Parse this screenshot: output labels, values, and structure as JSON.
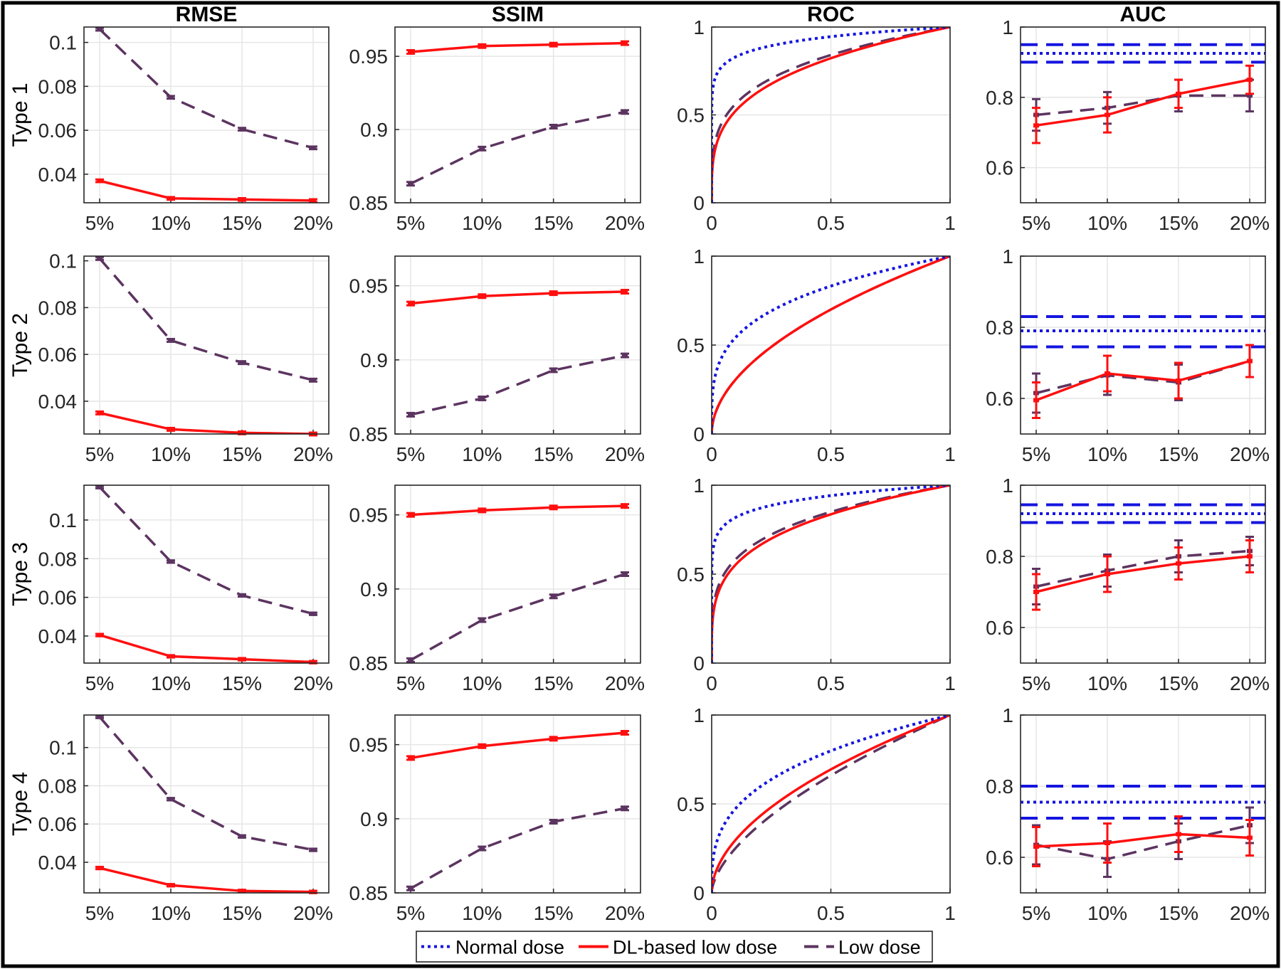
{
  "columns": [
    "RMSE",
    "SSIM",
    "ROC",
    "AUC"
  ],
  "rows": [
    "Type 1",
    "Type 2",
    "Type 3",
    "Type 4"
  ],
  "colors": {
    "normal": "#1515e0",
    "dl": "#ff0f0f",
    "low": "#5c3460",
    "grid": "#e6e6e6",
    "axis": "#262626",
    "frame": "#000000"
  },
  "legend": {
    "items": [
      {
        "key": "normal",
        "label": "Normal dose"
      },
      {
        "key": "dl",
        "label": "DL-based low dose"
      },
      {
        "key": "low",
        "label": "Low dose"
      }
    ]
  },
  "chart_data": [
    {
      "type": "line",
      "title": "RMSE",
      "row": "Type 1",
      "categories": [
        "5%",
        "10%",
        "15%",
        "20%"
      ],
      "ylim": [
        0.027,
        0.107
      ],
      "yticks": [
        0.04,
        0.06,
        0.08,
        0.1
      ],
      "ytick_labels": [
        "0.04",
        "0.06",
        "0.08",
        "0.1"
      ],
      "grid": true,
      "series": [
        {
          "name": "DL-based low dose",
          "values": [
            0.037,
            0.029,
            0.0285,
            0.028
          ]
        },
        {
          "name": "Low dose",
          "values": [
            0.106,
            0.075,
            0.0605,
            0.052
          ]
        }
      ]
    },
    {
      "type": "line",
      "title": "SSIM",
      "row": "Type 1",
      "categories": [
        "5%",
        "10%",
        "15%",
        "20%"
      ],
      "ylim": [
        0.85,
        0.97
      ],
      "yticks": [
        0.85,
        0.9,
        0.95
      ],
      "ytick_labels": [
        "0.85",
        "0.9",
        "0.95"
      ],
      "grid": true,
      "series": [
        {
          "name": "DL-based low dose",
          "values": [
            0.953,
            0.957,
            0.958,
            0.959
          ]
        },
        {
          "name": "Low dose",
          "values": [
            0.863,
            0.887,
            0.902,
            0.912
          ]
        }
      ]
    },
    {
      "type": "line",
      "title": "ROC",
      "row": "Type 1",
      "xlim": [
        0,
        1
      ],
      "ylim": [
        0,
        1
      ],
      "xticks": [
        0,
        0.5,
        1
      ],
      "xtick_labels": [
        "0",
        "0.5",
        "1"
      ],
      "yticks": [
        0,
        0.5,
        1
      ],
      "ytick_labels": [
        "0",
        "0.5",
        "1"
      ],
      "grid": true,
      "series": [
        {
          "name": "Normal dose",
          "auc": 0.925
        },
        {
          "name": "DL-based low dose",
          "auc": 0.78
        },
        {
          "name": "Low dose",
          "auc": 0.8
        }
      ]
    },
    {
      "type": "line",
      "title": "AUC",
      "row": "Type 1",
      "categories": [
        "5%",
        "10%",
        "15%",
        "20%"
      ],
      "ylim": [
        0.5,
        1
      ],
      "yticks": [
        0.6,
        0.8,
        1
      ],
      "ytick_labels": [
        "0.6",
        "0.8",
        "1"
      ],
      "grid": true,
      "normal_dose": {
        "mean": 0.925,
        "ci": [
          0.9,
          0.95
        ]
      },
      "series": [
        {
          "name": "DL-based low dose",
          "values": [
            0.72,
            0.75,
            0.81,
            0.85
          ],
          "err": [
            0.05,
            0.05,
            0.04,
            0.04
          ]
        },
        {
          "name": "Low dose",
          "values": [
            0.75,
            0.77,
            0.805,
            0.805
          ],
          "err": [
            0.045,
            0.045,
            0.045,
            0.045
          ]
        }
      ]
    },
    {
      "type": "line",
      "title": "RMSE",
      "row": "Type 2",
      "categories": [
        "5%",
        "10%",
        "15%",
        "20%"
      ],
      "ylim": [
        0.026,
        0.102
      ],
      "yticks": [
        0.04,
        0.06,
        0.08,
        0.1
      ],
      "ytick_labels": [
        "0.04",
        "0.06",
        "0.08",
        "0.1"
      ],
      "grid": true,
      "series": [
        {
          "name": "DL-based low dose",
          "values": [
            0.035,
            0.028,
            0.0265,
            0.026
          ]
        },
        {
          "name": "Low dose",
          "values": [
            0.101,
            0.066,
            0.0565,
            0.049
          ]
        }
      ]
    },
    {
      "type": "line",
      "title": "SSIM",
      "row": "Type 2",
      "categories": [
        "5%",
        "10%",
        "15%",
        "20%"
      ],
      "ylim": [
        0.85,
        0.97
      ],
      "yticks": [
        0.85,
        0.9,
        0.95
      ],
      "ytick_labels": [
        "0.85",
        "0.9",
        "0.95"
      ],
      "grid": true,
      "series": [
        {
          "name": "DL-based low dose",
          "values": [
            0.938,
            0.943,
            0.945,
            0.946
          ]
        },
        {
          "name": "Low dose",
          "values": [
            0.863,
            0.874,
            0.893,
            0.903
          ]
        }
      ]
    },
    {
      "type": "line",
      "title": "ROC",
      "row": "Type 2",
      "xlim": [
        0,
        1
      ],
      "ylim": [
        0,
        1
      ],
      "xticks": [
        0,
        0.5,
        1
      ],
      "xtick_labels": [
        "0",
        "0.5",
        "1"
      ],
      "yticks": [
        0,
        0.5,
        1
      ],
      "ytick_labels": [
        "0",
        "0.5",
        "1"
      ],
      "grid": true,
      "series": [
        {
          "name": "Normal dose",
          "auc": 0.79
        },
        {
          "name": "DL-based low dose",
          "auc": 0.66
        },
        {
          "name": "Low dose",
          "auc": 0.66
        }
      ]
    },
    {
      "type": "line",
      "title": "AUC",
      "row": "Type 2",
      "categories": [
        "5%",
        "10%",
        "15%",
        "20%"
      ],
      "ylim": [
        0.5,
        1
      ],
      "yticks": [
        0.6,
        0.8,
        1
      ],
      "ytick_labels": [
        "0.6",
        "0.8",
        "1"
      ],
      "grid": true,
      "normal_dose": {
        "mean": 0.79,
        "ci": [
          0.745,
          0.83
        ]
      },
      "series": [
        {
          "name": "DL-based low dose",
          "values": [
            0.595,
            0.67,
            0.65,
            0.705
          ],
          "err": [
            0.05,
            0.05,
            0.05,
            0.045
          ]
        },
        {
          "name": "Low dose",
          "values": [
            0.615,
            0.665,
            0.645,
            0.705
          ],
          "err": [
            0.055,
            0.055,
            0.05,
            0.045
          ]
        }
      ]
    },
    {
      "type": "line",
      "title": "RMSE",
      "row": "Type 3",
      "categories": [
        "5%",
        "10%",
        "15%",
        "20%"
      ],
      "ylim": [
        0.026,
        0.118
      ],
      "yticks": [
        0.04,
        0.06,
        0.08,
        0.1
      ],
      "ytick_labels": [
        "0.04",
        "0.06",
        "0.08",
        "0.1"
      ],
      "grid": true,
      "series": [
        {
          "name": "DL-based low dose",
          "values": [
            0.0405,
            0.0295,
            0.028,
            0.0265
          ]
        },
        {
          "name": "Low dose",
          "values": [
            0.117,
            0.0785,
            0.061,
            0.0515
          ]
        }
      ]
    },
    {
      "type": "line",
      "title": "SSIM",
      "row": "Type 3",
      "categories": [
        "5%",
        "10%",
        "15%",
        "20%"
      ],
      "ylim": [
        0.85,
        0.97
      ],
      "yticks": [
        0.85,
        0.9,
        0.95
      ],
      "ytick_labels": [
        "0.85",
        "0.9",
        "0.95"
      ],
      "grid": true,
      "series": [
        {
          "name": "DL-based low dose",
          "values": [
            0.95,
            0.953,
            0.955,
            0.956
          ]
        },
        {
          "name": "Low dose",
          "values": [
            0.852,
            0.879,
            0.895,
            0.91
          ]
        }
      ]
    },
    {
      "type": "line",
      "title": "ROC",
      "row": "Type 3",
      "xlim": [
        0,
        1
      ],
      "ylim": [
        0,
        1
      ],
      "xticks": [
        0,
        0.5,
        1
      ],
      "xtick_labels": [
        "0",
        "0.5",
        "1"
      ],
      "yticks": [
        0,
        0.5,
        1
      ],
      "ytick_labels": [
        "0",
        "0.5",
        "1"
      ],
      "grid": true,
      "series": [
        {
          "name": "Normal dose",
          "auc": 0.92
        },
        {
          "name": "DL-based low dose",
          "auc": 0.795
        },
        {
          "name": "Low dose",
          "auc": 0.81
        }
      ]
    },
    {
      "type": "line",
      "title": "AUC",
      "row": "Type 3",
      "categories": [
        "5%",
        "10%",
        "15%",
        "20%"
      ],
      "ylim": [
        0.5,
        1
      ],
      "yticks": [
        0.6,
        0.8,
        1
      ],
      "ytick_labels": [
        "0.6",
        "0.8",
        "1"
      ],
      "grid": true,
      "normal_dose": {
        "mean": 0.92,
        "ci": [
          0.895,
          0.945
        ]
      },
      "series": [
        {
          "name": "DL-based low dose",
          "values": [
            0.7,
            0.75,
            0.78,
            0.8
          ],
          "err": [
            0.05,
            0.05,
            0.045,
            0.045
          ]
        },
        {
          "name": "Low dose",
          "values": [
            0.715,
            0.76,
            0.8,
            0.815
          ],
          "err": [
            0.05,
            0.045,
            0.045,
            0.04
          ]
        }
      ]
    },
    {
      "type": "line",
      "title": "RMSE",
      "row": "Type 4",
      "categories": [
        "5%",
        "10%",
        "15%",
        "20%"
      ],
      "ylim": [
        0.024,
        0.117
      ],
      "yticks": [
        0.04,
        0.06,
        0.08,
        0.1
      ],
      "ytick_labels": [
        "0.04",
        "0.06",
        "0.08",
        "0.1"
      ],
      "grid": true,
      "series": [
        {
          "name": "DL-based low dose",
          "values": [
            0.037,
            0.028,
            0.025,
            0.0245
          ]
        },
        {
          "name": "Low dose",
          "values": [
            0.116,
            0.073,
            0.0535,
            0.0465
          ]
        }
      ]
    },
    {
      "type": "line",
      "title": "SSIM",
      "row": "Type 4",
      "categories": [
        "5%",
        "10%",
        "15%",
        "20%"
      ],
      "ylim": [
        0.85,
        0.97
      ],
      "yticks": [
        0.85,
        0.9,
        0.95
      ],
      "ytick_labels": [
        "0.85",
        "0.9",
        "0.95"
      ],
      "grid": true,
      "series": [
        {
          "name": "DL-based low dose",
          "values": [
            0.941,
            0.949,
            0.954,
            0.958
          ]
        },
        {
          "name": "Low dose",
          "values": [
            0.853,
            0.88,
            0.898,
            0.907
          ]
        }
      ]
    },
    {
      "type": "line",
      "title": "ROC",
      "row": "Type 4",
      "xlim": [
        0,
        1
      ],
      "ylim": [
        0,
        1
      ],
      "xticks": [
        0,
        0.5,
        1
      ],
      "xtick_labels": [
        "0",
        "0.5",
        "1"
      ],
      "yticks": [
        0,
        0.5,
        1
      ],
      "ytick_labels": [
        "0",
        "0.5",
        "1"
      ],
      "grid": true,
      "series": [
        {
          "name": "Normal dose",
          "auc": 0.755
        },
        {
          "name": "DL-based low dose",
          "auc": 0.655
        },
        {
          "name": "Low dose",
          "auc": 0.625
        }
      ]
    },
    {
      "type": "line",
      "title": "AUC",
      "row": "Type 4",
      "categories": [
        "5%",
        "10%",
        "15%",
        "20%"
      ],
      "ylim": [
        0.5,
        1
      ],
      "yticks": [
        0.6,
        0.8,
        1
      ],
      "ytick_labels": [
        "0.6",
        "0.8",
        "1"
      ],
      "grid": true,
      "normal_dose": {
        "mean": 0.755,
        "ci": [
          0.71,
          0.8
        ]
      },
      "series": [
        {
          "name": "DL-based low dose",
          "values": [
            0.63,
            0.64,
            0.665,
            0.655
          ],
          "err": [
            0.055,
            0.055,
            0.05,
            0.05
          ]
        },
        {
          "name": "Low dose",
          "values": [
            0.635,
            0.595,
            0.645,
            0.69
          ],
          "err": [
            0.055,
            0.05,
            0.05,
            0.05
          ]
        }
      ]
    }
  ]
}
